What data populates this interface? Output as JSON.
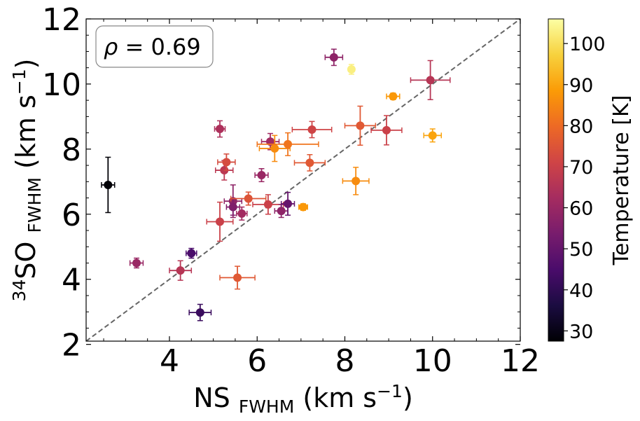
{
  "chart_data": {
    "type": "scatter",
    "title": "",
    "annotation": "ρ = 0.69",
    "annotation_parts": {
      "symbol": "ρ",
      "eq": " = 0.69"
    },
    "xlabel": "NS FWHM (km s⁻¹)",
    "ylabel": "³⁴SO FWHM (km s⁻¹)",
    "xlabel_parts": {
      "main": "NS ",
      "sub": "FWHM",
      "unit": " (km s",
      "sup": "−1",
      "close": ")"
    },
    "ylabel_parts": {
      "sup_iso": "34",
      "main": "SO ",
      "sub": "FWHM",
      "unit": " (km s",
      "sup": "−1",
      "close": ")"
    },
    "xlim": [
      2.1,
      12
    ],
    "ylim": [
      2.1,
      12
    ],
    "xticks": [
      "4",
      "6",
      "8",
      "10",
      "12"
    ],
    "yticks": [
      "2",
      "4",
      "6",
      "8",
      "10",
      "12"
    ],
    "reference_line": "y = x",
    "colorbar": {
      "label": "Temperature [K]",
      "min": 27.5,
      "max": 106,
      "ticks": [
        "30",
        "40",
        "50",
        "60",
        "70",
        "80",
        "90",
        "100"
      ]
    },
    "colormap": [
      "#000004",
      "#1b0c41",
      "#4a0c6b",
      "#781c6d",
      "#a52c60",
      "#cf4446",
      "#ed6925",
      "#fb9b06",
      "#f7d13d",
      "#fcffa4"
    ],
    "points": [
      {
        "x": 2.6,
        "y": 6.9,
        "xerr": 0.15,
        "yerr": 0.85,
        "temp": 28
      },
      {
        "x": 3.25,
        "y": 4.5,
        "xerr": 0.15,
        "yerr": 0.15,
        "temp": 60
      },
      {
        "x": 4.25,
        "y": 4.27,
        "xerr": 0.25,
        "yerr": 0.3,
        "temp": 66
      },
      {
        "x": 4.5,
        "y": 4.8,
        "xerr": 0.12,
        "yerr": 0.15,
        "temp": 45
      },
      {
        "x": 4.7,
        "y": 2.98,
        "xerr": 0.25,
        "yerr": 0.25,
        "temp": 42
      },
      {
        "x": 5.15,
        "y": 8.62,
        "xerr": 0.12,
        "yerr": 0.25,
        "temp": 64
      },
      {
        "x": 5.15,
        "y": 5.77,
        "xerr": 0.3,
        "yerr": 0.6,
        "temp": 70
      },
      {
        "x": 5.25,
        "y": 7.35,
        "xerr": 0.2,
        "yerr": 0.3,
        "temp": 67
      },
      {
        "x": 5.3,
        "y": 7.6,
        "xerr": 0.2,
        "yerr": 0.25,
        "temp": 73
      },
      {
        "x": 5.45,
        "y": 6.4,
        "xerr": 0.2,
        "yerr": 0.5,
        "temp": 58
      },
      {
        "x": 5.45,
        "y": 6.22,
        "xerr": 0.15,
        "yerr": 0.25,
        "temp": 55
      },
      {
        "x": 5.55,
        "y": 4.05,
        "xerr": 0.4,
        "yerr": 0.35,
        "temp": 76
      },
      {
        "x": 5.65,
        "y": 6.02,
        "xerr": 0.12,
        "yerr": 0.2,
        "temp": 62
      },
      {
        "x": 5.8,
        "y": 6.48,
        "xerr": 0.4,
        "yerr": 0.2,
        "temp": 75
      },
      {
        "x": 6.1,
        "y": 7.2,
        "xerr": 0.15,
        "yerr": 0.2,
        "temp": 60
      },
      {
        "x": 6.25,
        "y": 6.3,
        "xerr": 0.35,
        "yerr": 0.3,
        "temp": 70
      },
      {
        "x": 6.3,
        "y": 8.23,
        "xerr": 0.2,
        "yerr": 0.25,
        "temp": 62
      },
      {
        "x": 6.4,
        "y": 8.02,
        "xerr": 0.35,
        "yerr": 0.4,
        "temp": 86
      },
      {
        "x": 6.55,
        "y": 6.1,
        "xerr": 0.15,
        "yerr": 0.2,
        "temp": 58
      },
      {
        "x": 6.7,
        "y": 8.15,
        "xerr": 0.7,
        "yerr": 0.35,
        "temp": 82
      },
      {
        "x": 6.7,
        "y": 6.32,
        "xerr": 0.15,
        "yerr": 0.35,
        "temp": 50
      },
      {
        "x": 7.05,
        "y": 6.22,
        "xerr": 0.1,
        "yerr": 0.1,
        "temp": 88
      },
      {
        "x": 7.2,
        "y": 7.58,
        "xerr": 0.35,
        "yerr": 0.25,
        "temp": 76
      },
      {
        "x": 7.25,
        "y": 8.6,
        "xerr": 0.45,
        "yerr": 0.25,
        "temp": 71
      },
      {
        "x": 7.75,
        "y": 10.82,
        "xerr": 0.2,
        "yerr": 0.25,
        "temp": 58
      },
      {
        "x": 8.15,
        "y": 10.45,
        "xerr": 0.05,
        "yerr": 0.15,
        "temp": 103
      },
      {
        "x": 8.25,
        "y": 7.02,
        "xerr": 0.3,
        "yerr": 0.42,
        "temp": 86
      },
      {
        "x": 8.35,
        "y": 8.72,
        "xerr": 0.35,
        "yerr": 0.6,
        "temp": 76
      },
      {
        "x": 8.95,
        "y": 8.58,
        "xerr": 0.35,
        "yerr": 0.45,
        "temp": 70
      },
      {
        "x": 9.1,
        "y": 9.62,
        "xerr": 0.15,
        "yerr": 0.1,
        "temp": 88
      },
      {
        "x": 9.95,
        "y": 10.12,
        "xerr": 0.45,
        "yerr": 0.6,
        "temp": 66
      },
      {
        "x": 10.0,
        "y": 8.42,
        "xerr": 0.2,
        "yerr": 0.2,
        "temp": 90
      }
    ]
  }
}
